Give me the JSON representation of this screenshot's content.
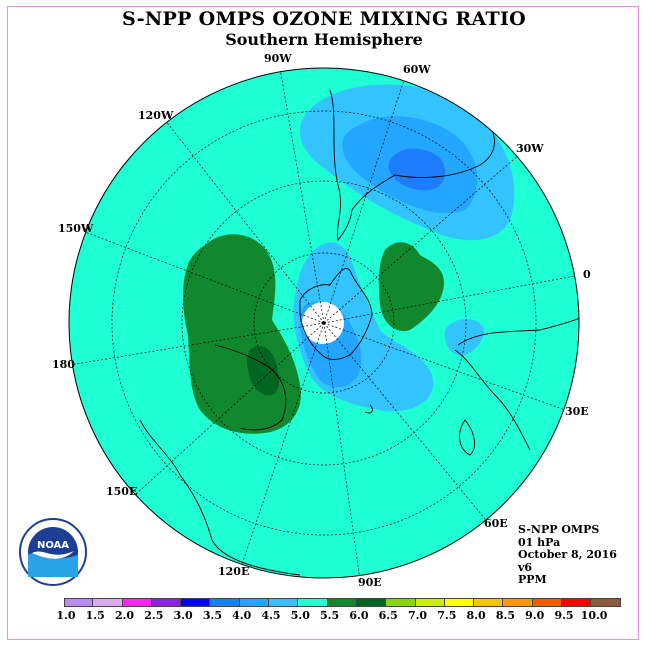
{
  "title": "S-NPP OMPS OZONE MIXING RATIO",
  "subtitle": "Southern Hemisphere",
  "longitude_labels": {
    "lon_90w": "90W",
    "lon_60w": "60W",
    "lon_30w": "30W",
    "lon_0": "0",
    "lon_30e": "30E",
    "lon_60e": "60E",
    "lon_90e": "90E",
    "lon_120e": "120E",
    "lon_150e": "150E",
    "lon_180": "180",
    "lon_150w": "150W",
    "lon_120w": "120W"
  },
  "info": {
    "instrument": "S-NPP OMPS",
    "level": "01 hPa",
    "date": "October 8, 2016",
    "version": "v6",
    "units": "PPM"
  },
  "logo_text": "NOAA",
  "colorbar": {
    "ticks": [
      "1.0",
      "1.5",
      "2.0",
      "2.5",
      "3.0",
      "3.5",
      "4.0",
      "4.5",
      "5.0",
      "5.5",
      "6.0",
      "6.5",
      "7.0",
      "7.5",
      "8.0",
      "8.5",
      "9.0",
      "9.5",
      "10.0"
    ],
    "colors": [
      "#b88cf0",
      "#dcaaf0",
      "#ff22ff",
      "#8822ee",
      "#0000ff",
      "#1e7cff",
      "#22a6ff",
      "#33c4ff",
      "#1effd4",
      "#11882e",
      "#006622",
      "#88d800",
      "#ccee00",
      "#ffff00",
      "#f0c800",
      "#ff9900",
      "#ff5500",
      "#ff0000",
      "#8b5a3c"
    ]
  },
  "colors": {
    "background_field": "#1effd4",
    "light_blue": "#33c4ff",
    "medium_blue": "#22a6ff",
    "dark_blue": "#1e7cff",
    "green": "#11882e",
    "dark_green": "#006622",
    "frame": "#e58fe5"
  }
}
